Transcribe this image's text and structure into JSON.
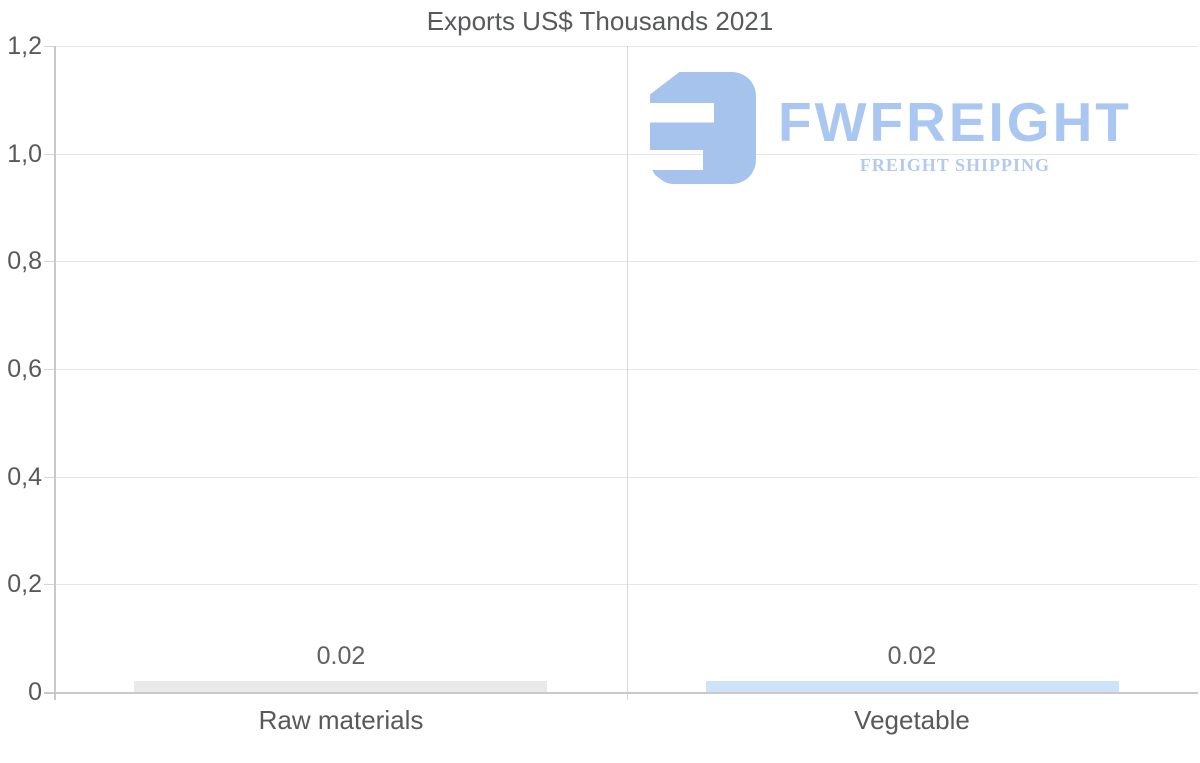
{
  "title": "Exports US$ Thousands 2021",
  "logo": {
    "name": "FWFREIGHT",
    "tagline": "FREIGHT SHIPPING",
    "icon": "fwfreight-mark",
    "icon_color": "#a6c3ee",
    "name_color": "#aac7f1",
    "tagline_color": "#b3c9ed"
  },
  "chart_data": {
    "type": "bar",
    "title": "Exports US$ Thousands 2021",
    "categories": [
      "Raw materials",
      "Vegetable"
    ],
    "values": [
      0.02,
      0.02
    ],
    "value_labels": [
      "0.02",
      "0.02"
    ],
    "bar_colors": [
      "#e9e9e9",
      "#cfe3f8"
    ],
    "xlabel": "",
    "ylabel": "",
    "ylim": [
      0,
      1.2
    ],
    "y_ticks": [
      0,
      0.2,
      0.4,
      0.6,
      0.8,
      1.0,
      1.2
    ],
    "y_tick_labels": [
      "0",
      "0,2",
      "0,4",
      "0,6",
      "0,8",
      "1,0",
      "1,2"
    ],
    "grid": "horizontal",
    "legend": "none",
    "colors": {
      "text": "#595959",
      "gridline": "#e6e6e6",
      "axis": "#c9c9c9",
      "divider": "#d6d6d6"
    }
  }
}
